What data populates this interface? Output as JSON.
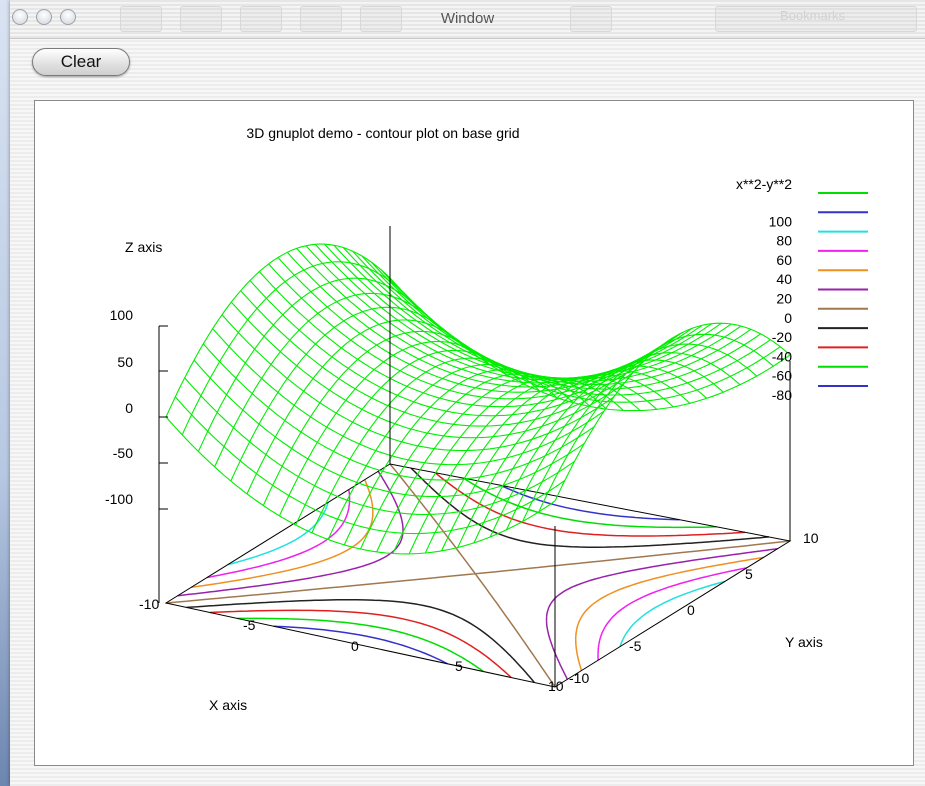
{
  "window": {
    "title": "Window",
    "bookmarks_label": "Bookmarks"
  },
  "toolbar": {
    "clear_label": "Clear"
  },
  "chart_data": {
    "type": "surface",
    "title": "3D gnuplot demo - contour plot on base grid",
    "function": "x**2-y**2",
    "xlabel": "X axis",
    "ylabel": "Y axis",
    "zlabel": "Z axis",
    "xrange": [
      -10,
      10
    ],
    "yrange": [
      -10,
      10
    ],
    "zticks": [
      "100",
      "50",
      "0",
      "-50",
      "-100"
    ],
    "xticks": [
      "-10",
      "-5",
      "0",
      "5",
      "10"
    ],
    "yticks": [
      "-10",
      "-5",
      "0",
      "5",
      "10"
    ],
    "legend": {
      "title": "x**2-y**2",
      "placement": "top-right",
      "entries": [
        {
          "label": "",
          "color": "#00dd00"
        },
        {
          "label": "100",
          "color": "#3333cc"
        },
        {
          "label": "80",
          "color": "#22e0e0"
        },
        {
          "label": "60",
          "color": "#ee22ee"
        },
        {
          "label": "40",
          "color": "#f09020"
        },
        {
          "label": "20",
          "color": "#9922aa"
        },
        {
          "label": "0",
          "color": "#a07850"
        },
        {
          "label": "-20",
          "color": "#222222"
        },
        {
          "label": "-40",
          "color": "#e02020"
        },
        {
          "label": "-60",
          "color": "#00dd00"
        },
        {
          "label": "-80",
          "color": "#3333cc"
        }
      ]
    },
    "contour_levels": [
      100,
      80,
      60,
      40,
      20,
      0,
      -20,
      -40,
      -60,
      -80
    ],
    "surface_color": "#00ee00"
  }
}
